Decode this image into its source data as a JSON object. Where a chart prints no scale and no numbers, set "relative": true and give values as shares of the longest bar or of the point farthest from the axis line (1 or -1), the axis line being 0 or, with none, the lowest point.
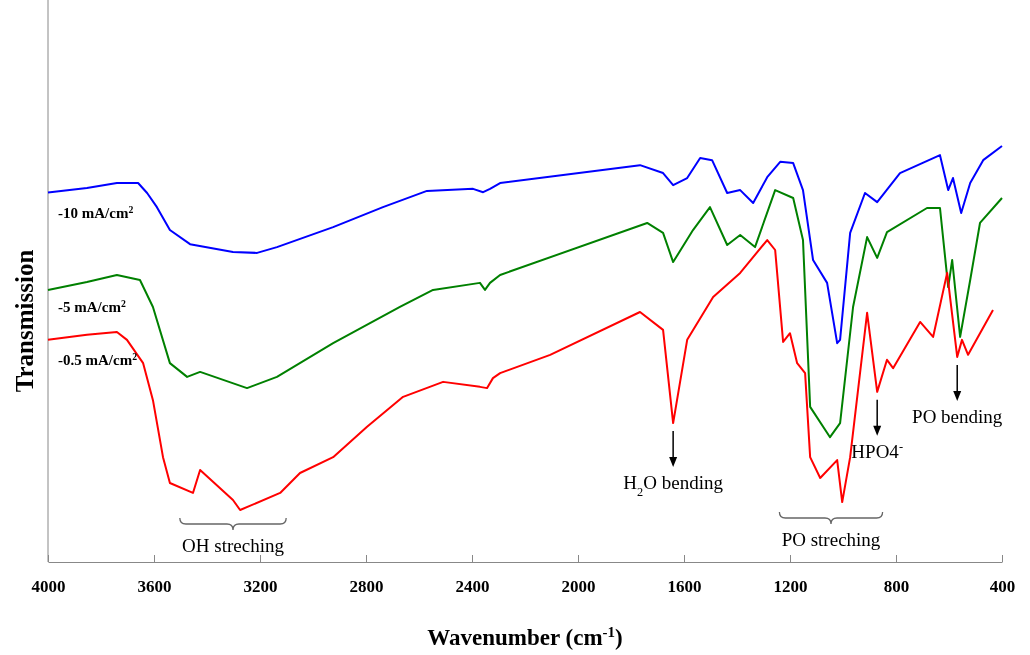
{
  "chart_data": {
    "type": "line",
    "relative": true,
    "xlabel": "Wavenumber (cm$^{-1}$)",
    "ylabel": "Transmission",
    "xlim": [
      4000,
      400
    ],
    "xticks": [
      4000,
      3600,
      3200,
      2800,
      2400,
      2000,
      1600,
      1200,
      800,
      400
    ],
    "legend": false,
    "grid": false,
    "marker": "none",
    "line_style": "solid",
    "series": [
      {
        "name": "-10 mA/cm$^{2}$",
        "color": "#0000ff",
        "x": [
          4000,
          3853,
          3740,
          3660,
          3626,
          3589,
          3540,
          3464,
          3302,
          3211,
          3136,
          2924,
          2736,
          2570,
          2396,
          2358,
          2332,
          2294,
          1766,
          1679,
          1641,
          1588,
          1539,
          1494,
          1437,
          1388,
          1339,
          1286,
          1237,
          1188,
          1151,
          1113,
          1060,
          1022,
          1011,
          973,
          917,
          871,
          785,
          634,
          603,
          585,
          554,
          520,
          471,
          400
        ],
        "values": [
          0.888,
          0.899,
          0.911,
          0.911,
          0.887,
          0.853,
          0.798,
          0.764,
          0.745,
          0.743,
          0.757,
          0.805,
          0.853,
          0.892,
          0.897,
          0.889,
          0.897,
          0.911,
          0.954,
          0.935,
          0.906,
          0.923,
          0.971,
          0.966,
          0.887,
          0.894,
          0.863,
          0.925,
          0.962,
          0.959,
          0.894,
          0.726,
          0.671,
          0.526,
          0.534,
          0.791,
          0.887,
          0.865,
          0.935,
          0.978,
          0.894,
          0.923,
          0.839,
          0.911,
          0.966,
          1.0
        ]
      },
      {
        "name": "-5 mA/cm$^{2}$",
        "color": "#008000",
        "x": [
          4000,
          3853,
          3740,
          3653,
          3604,
          3540,
          3475,
          3426,
          3249,
          3136,
          2924,
          2672,
          2547,
          2370,
          2351,
          2332,
          2294,
          1739,
          1679,
          1641,
          1566,
          1502,
          1437,
          1388,
          1332,
          1256,
          1188,
          1151,
          1124,
          1049,
          1011,
          962,
          909,
          871,
          834,
          683,
          634,
          603,
          588,
          558,
          520,
          483,
          400
        ],
        "values": [
          0.654,
          0.673,
          0.69,
          0.678,
          0.613,
          0.478,
          0.445,
          0.457,
          0.418,
          0.445,
          0.526,
          0.613,
          0.654,
          0.671,
          0.654,
          0.671,
          0.69,
          0.815,
          0.791,
          0.721,
          0.798,
          0.853,
          0.762,
          0.786,
          0.757,
          0.894,
          0.875,
          0.774,
          0.373,
          0.3,
          0.334,
          0.613,
          0.781,
          0.731,
          0.793,
          0.851,
          0.851,
          0.661,
          0.726,
          0.541,
          0.678,
          0.815,
          0.875
        ]
      },
      {
        "name": "-0.5 mA/cm$^{2}$",
        "color": "#ff0000",
        "x": [
          4000,
          3853,
          3740,
          3702,
          3641,
          3604,
          3566,
          3540,
          3453,
          3426,
          3302,
          3275,
          3124,
          3049,
          2924,
          2796,
          2660,
          2509,
          2370,
          2343,
          2321,
          2294,
          2105,
          1766,
          1679,
          1641,
          1588,
          1490,
          1388,
          1286,
          1256,
          1226,
          1200,
          1173,
          1143,
          1124,
          1086,
          1022,
          1003,
          973,
          909,
          871,
          834,
          811,
          709,
          660,
          607,
          569,
          551,
          528,
          434
        ],
        "values": [
          0.534,
          0.546,
          0.553,
          0.534,
          0.478,
          0.389,
          0.252,
          0.19,
          0.166,
          0.221,
          0.149,
          0.125,
          0.166,
          0.214,
          0.252,
          0.325,
          0.397,
          0.433,
          0.421,
          0.418,
          0.442,
          0.454,
          0.498,
          0.601,
          0.558,
          0.334,
          0.534,
          0.637,
          0.695,
          0.774,
          0.75,
          0.529,
          0.55,
          0.478,
          0.454,
          0.252,
          0.202,
          0.245,
          0.144,
          0.252,
          0.599,
          0.409,
          0.486,
          0.466,
          0.577,
          0.541,
          0.695,
          0.493,
          0.534,
          0.498,
          0.606
        ]
      }
    ],
    "annotations": [
      "OH streching",
      {
        "text": "H$_{2}$O bending",
        "x": 1641,
        "y": 0.334
      },
      "PO streching",
      {
        "text": "HPO4$^{-}$",
        "x": 871,
        "y": 0.409
      },
      {
        "text": "PO bending",
        "x": 569,
        "y": 0.493
      }
    ]
  }
}
